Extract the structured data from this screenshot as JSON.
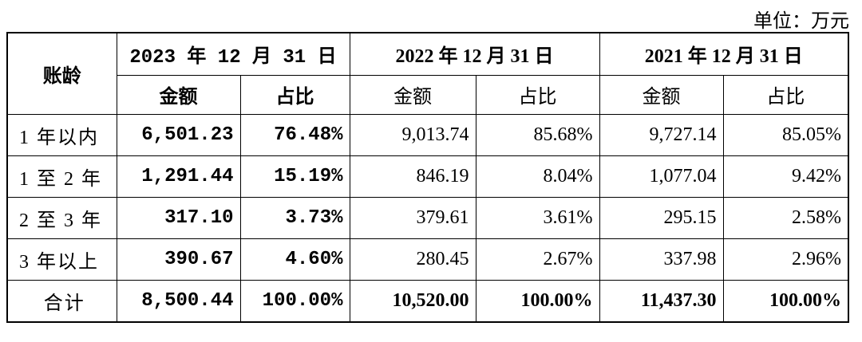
{
  "unit": "单位：万元",
  "table": {
    "corner": "账龄",
    "years": [
      "2023 年 12 月 31 日",
      "2022 年 12 月 31 日",
      "2021 年 12 月 31 日"
    ],
    "subheaders": [
      "金额",
      "占比",
      "金额",
      "占比",
      "金额",
      "占比"
    ],
    "rows": [
      [
        "1 年以内",
        "6,501.23",
        "76.48%",
        "9,013.74",
        "85.68%",
        "9,727.14",
        "85.05%"
      ],
      [
        "1 至 2 年",
        "1,291.44",
        "15.19%",
        "846.19",
        "8.04%",
        "1,077.04",
        "9.42%"
      ],
      [
        "2 至 3 年",
        "317.10",
        "3.73%",
        "379.61",
        "3.61%",
        "295.15",
        "2.58%"
      ],
      [
        "3 年以上",
        "390.67",
        "4.60%",
        "280.45",
        "2.67%",
        "337.98",
        "2.96%"
      ],
      [
        "合计",
        "8,500.44",
        "100.00%",
        "10,520.00",
        "100.00%",
        "11,437.30",
        "100.00%"
      ]
    ]
  }
}
